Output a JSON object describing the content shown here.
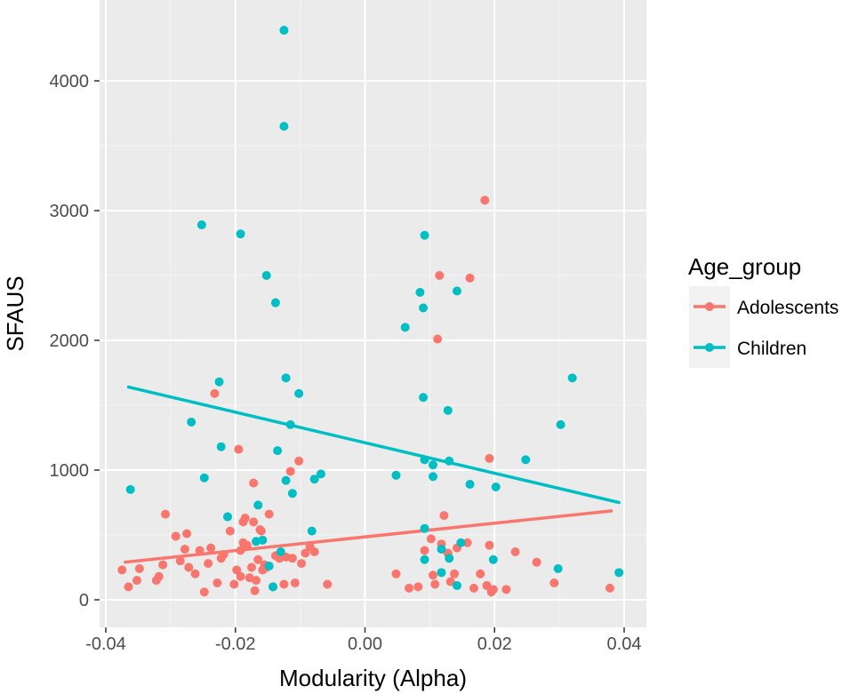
{
  "chart_data": {
    "type": "scatter",
    "title": "",
    "xlabel": "Modularity (Alpha)",
    "ylabel": "SFAUS",
    "xlim": [
      -0.04,
      0.04
    ],
    "ylim": [
      -100,
      4500
    ],
    "xticks": [
      -0.04,
      -0.02,
      0.0,
      0.02,
      0.04
    ],
    "xtick_labels": [
      "-0.04",
      "-0.02",
      "0.00",
      "0.02",
      "0.04"
    ],
    "yticks": [
      0,
      1000,
      2000,
      3000,
      4000
    ],
    "ytick_labels": [
      "0",
      "1000",
      "2000",
      "3000",
      "4000"
    ],
    "grid": true,
    "legend": {
      "title": "Age_group",
      "position": "right"
    },
    "series": [
      {
        "name": "Adolescents",
        "color": "#F8766D",
        "trend": [
          [
            -0.037,
            290
          ],
          [
            0.038,
            685
          ]
        ],
        "points": [
          [
            -0.0375,
            230
          ],
          [
            -0.0365,
            100
          ],
          [
            -0.0352,
            150
          ],
          [
            -0.0348,
            240
          ],
          [
            -0.0322,
            150
          ],
          [
            -0.0318,
            180
          ],
          [
            -0.0312,
            270
          ],
          [
            -0.0308,
            660
          ],
          [
            -0.0292,
            490
          ],
          [
            -0.0285,
            300
          ],
          [
            -0.0278,
            390
          ],
          [
            -0.0275,
            510
          ],
          [
            -0.0272,
            250
          ],
          [
            -0.0262,
            200
          ],
          [
            -0.0255,
            380
          ],
          [
            -0.0248,
            60
          ],
          [
            -0.0242,
            280
          ],
          [
            -0.0238,
            400
          ],
          [
            -0.0232,
            1590
          ],
          [
            -0.0228,
            130
          ],
          [
            -0.0222,
            320
          ],
          [
            -0.0218,
            350
          ],
          [
            -0.0208,
            530
          ],
          [
            -0.0202,
            120
          ],
          [
            -0.0198,
            230
          ],
          [
            -0.0195,
            1160
          ],
          [
            -0.0192,
            380
          ],
          [
            -0.0192,
            180
          ],
          [
            -0.0188,
            600
          ],
          [
            -0.0188,
            440
          ],
          [
            -0.0185,
            630
          ],
          [
            -0.0182,
            420
          ],
          [
            -0.0178,
            170
          ],
          [
            -0.0175,
            250
          ],
          [
            -0.0172,
            900
          ],
          [
            -0.0172,
            600
          ],
          [
            -0.017,
            70
          ],
          [
            -0.0168,
            150
          ],
          [
            -0.0165,
            310
          ],
          [
            -0.0162,
            540
          ],
          [
            -0.016,
            530
          ],
          [
            -0.0158,
            230
          ],
          [
            -0.0155,
            270
          ],
          [
            -0.0152,
            250
          ],
          [
            -0.0148,
            660
          ],
          [
            -0.0142,
            100
          ],
          [
            -0.0138,
            340
          ],
          [
            -0.0132,
            320
          ],
          [
            -0.0125,
            120
          ],
          [
            -0.0122,
            330
          ],
          [
            -0.0115,
            990
          ],
          [
            -0.0112,
            320
          ],
          [
            -0.0108,
            130
          ],
          [
            -0.0102,
            1070
          ],
          [
            -0.0098,
            280
          ],
          [
            -0.0092,
            360
          ],
          [
            -0.0085,
            410
          ],
          [
            -0.0078,
            370
          ],
          [
            -0.0058,
            120
          ],
          [
            0.0048,
            200
          ],
          [
            0.0068,
            90
          ],
          [
            0.0082,
            100
          ],
          [
            0.0092,
            380
          ],
          [
            0.0102,
            470
          ],
          [
            0.0105,
            190
          ],
          [
            0.0108,
            120
          ],
          [
            0.0112,
            2010
          ],
          [
            0.0115,
            2500
          ],
          [
            0.0118,
            430
          ],
          [
            0.0122,
            650
          ],
          [
            0.0128,
            360
          ],
          [
            0.0132,
            140
          ],
          [
            0.0138,
            200
          ],
          [
            0.0142,
            400
          ],
          [
            0.0158,
            440
          ],
          [
            0.0162,
            2480
          ],
          [
            0.0168,
            90
          ],
          [
            0.0178,
            200
          ],
          [
            0.0185,
            3080
          ],
          [
            0.0188,
            110
          ],
          [
            0.0192,
            1090
          ],
          [
            0.0192,
            420
          ],
          [
            0.0195,
            60
          ],
          [
            0.0198,
            80
          ],
          [
            0.0218,
            80
          ],
          [
            0.0232,
            370
          ],
          [
            0.0265,
            290
          ],
          [
            0.0292,
            130
          ],
          [
            0.0378,
            90
          ]
        ]
      },
      {
        "name": "Children",
        "color": "#00BFC4",
        "trend": [
          [
            -0.0365,
            1640
          ],
          [
            0.0392,
            750
          ]
        ],
        "points": [
          [
            -0.0362,
            850
          ],
          [
            -0.0268,
            1370
          ],
          [
            -0.0252,
            2890
          ],
          [
            -0.0248,
            940
          ],
          [
            -0.0225,
            1680
          ],
          [
            -0.0222,
            1180
          ],
          [
            -0.0212,
            640
          ],
          [
            -0.0192,
            2820
          ],
          [
            -0.0168,
            450
          ],
          [
            -0.0165,
            730
          ],
          [
            -0.0158,
            460
          ],
          [
            -0.0152,
            2500
          ],
          [
            -0.0148,
            260
          ],
          [
            -0.0142,
            100
          ],
          [
            -0.0138,
            2290
          ],
          [
            -0.0135,
            1150
          ],
          [
            -0.013,
            370
          ],
          [
            -0.0125,
            4390
          ],
          [
            -0.0125,
            3650
          ],
          [
            -0.0122,
            1710
          ],
          [
            -0.0122,
            920
          ],
          [
            -0.0115,
            1350
          ],
          [
            -0.0112,
            820
          ],
          [
            -0.0102,
            1590
          ],
          [
            -0.0082,
            530
          ],
          [
            -0.0078,
            930
          ],
          [
            -0.0068,
            970
          ],
          [
            0.0048,
            960
          ],
          [
            0.0062,
            2100
          ],
          [
            0.0085,
            2370
          ],
          [
            0.009,
            2250
          ],
          [
            0.009,
            1560
          ],
          [
            0.0092,
            2810
          ],
          [
            0.0092,
            1080
          ],
          [
            0.0092,
            550
          ],
          [
            0.0092,
            310
          ],
          [
            0.0105,
            1040
          ],
          [
            0.0105,
            950
          ],
          [
            0.0118,
            390
          ],
          [
            0.0118,
            210
          ],
          [
            0.0128,
            1460
          ],
          [
            0.013,
            1070
          ],
          [
            0.013,
            320
          ],
          [
            0.0142,
            2380
          ],
          [
            0.0142,
            110
          ],
          [
            0.0148,
            440
          ],
          [
            0.0162,
            890
          ],
          [
            0.0198,
            310
          ],
          [
            0.0202,
            870
          ],
          [
            0.0248,
            1080
          ],
          [
            0.0298,
            240
          ],
          [
            0.0302,
            1350
          ],
          [
            0.032,
            1710
          ],
          [
            0.0392,
            210
          ]
        ]
      }
    ]
  }
}
